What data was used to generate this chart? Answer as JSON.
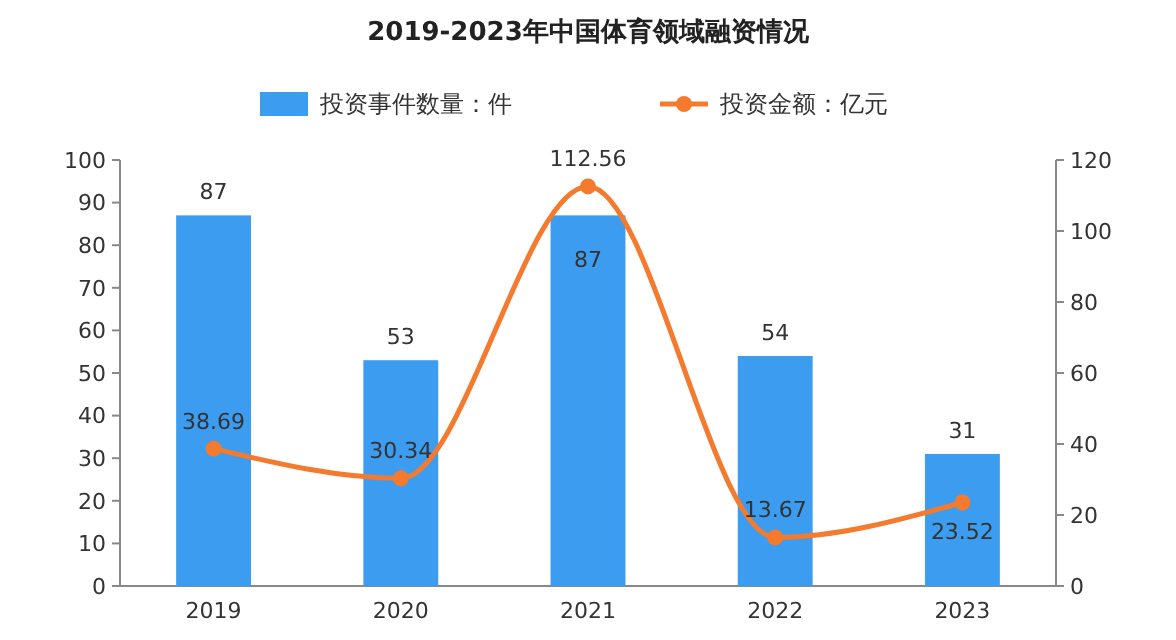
{
  "chart_data": {
    "type": "bar",
    "title": "2019-2023年中国体育领域融资情况",
    "categories": [
      "2019",
      "2020",
      "2021",
      "2022",
      "2023"
    ],
    "series": [
      {
        "name": "投资事件数量：件",
        "color": "#3c9cf0",
        "values": [
          87,
          53,
          87,
          54,
          31
        ]
      },
      {
        "name": "投资金额：亿元",
        "type": "line",
        "axis": "y2",
        "color": "#f47a2e",
        "values": [
          38.69,
          30.34,
          112.56,
          13.67,
          23.52
        ]
      }
    ],
    "ylim": [
      0,
      100
    ],
    "yticks": [
      0,
      10,
      20,
      30,
      40,
      50,
      60,
      70,
      80,
      90,
      100
    ],
    "y2lim": [
      0,
      120
    ],
    "y2ticks": [
      0,
      20,
      40,
      60,
      80,
      100,
      120
    ],
    "data_labels": true,
    "legend": "top",
    "marker": "circle",
    "grid": false
  }
}
